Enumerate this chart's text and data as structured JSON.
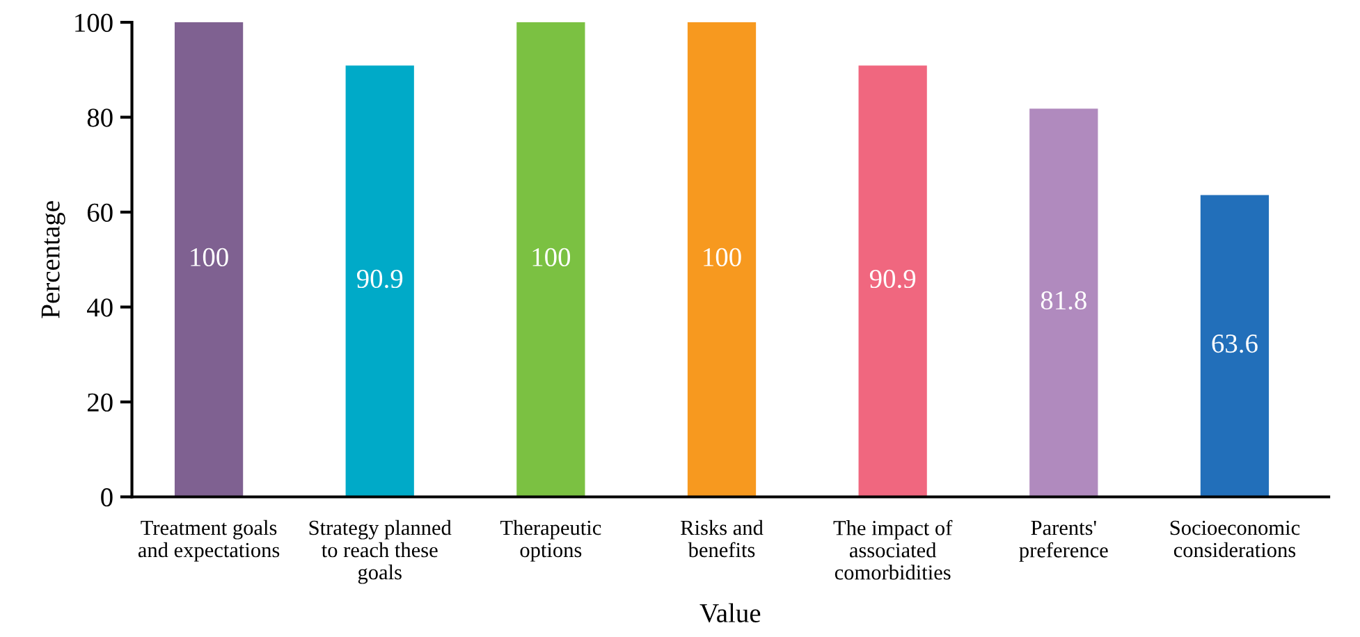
{
  "chart_data": {
    "type": "bar",
    "xlabel": "Value",
    "ylabel": "Percentage",
    "categories": [
      "Treatment goals\nand expectations",
      "Strategy planned\nto reach these\ngoals",
      "Therapeutic\noptions",
      "Risks and\nbenefits",
      "The impact of\nassociated\ncomorbidities",
      "Parents'\npreference",
      "Socioeconomic\nconsiderations"
    ],
    "values": [
      100,
      90.9,
      100,
      100,
      90.9,
      81.8,
      63.6
    ],
    "colors": [
      "#7f6191",
      "#00aac8",
      "#7bc142",
      "#f7991f",
      "#f0677f",
      "#b08abe",
      "#226fba"
    ],
    "ylim": [
      0,
      100
    ],
    "yticks": [
      0,
      20,
      40,
      60,
      80,
      100
    ],
    "data_labels": true,
    "grid": false,
    "legend": false
  }
}
